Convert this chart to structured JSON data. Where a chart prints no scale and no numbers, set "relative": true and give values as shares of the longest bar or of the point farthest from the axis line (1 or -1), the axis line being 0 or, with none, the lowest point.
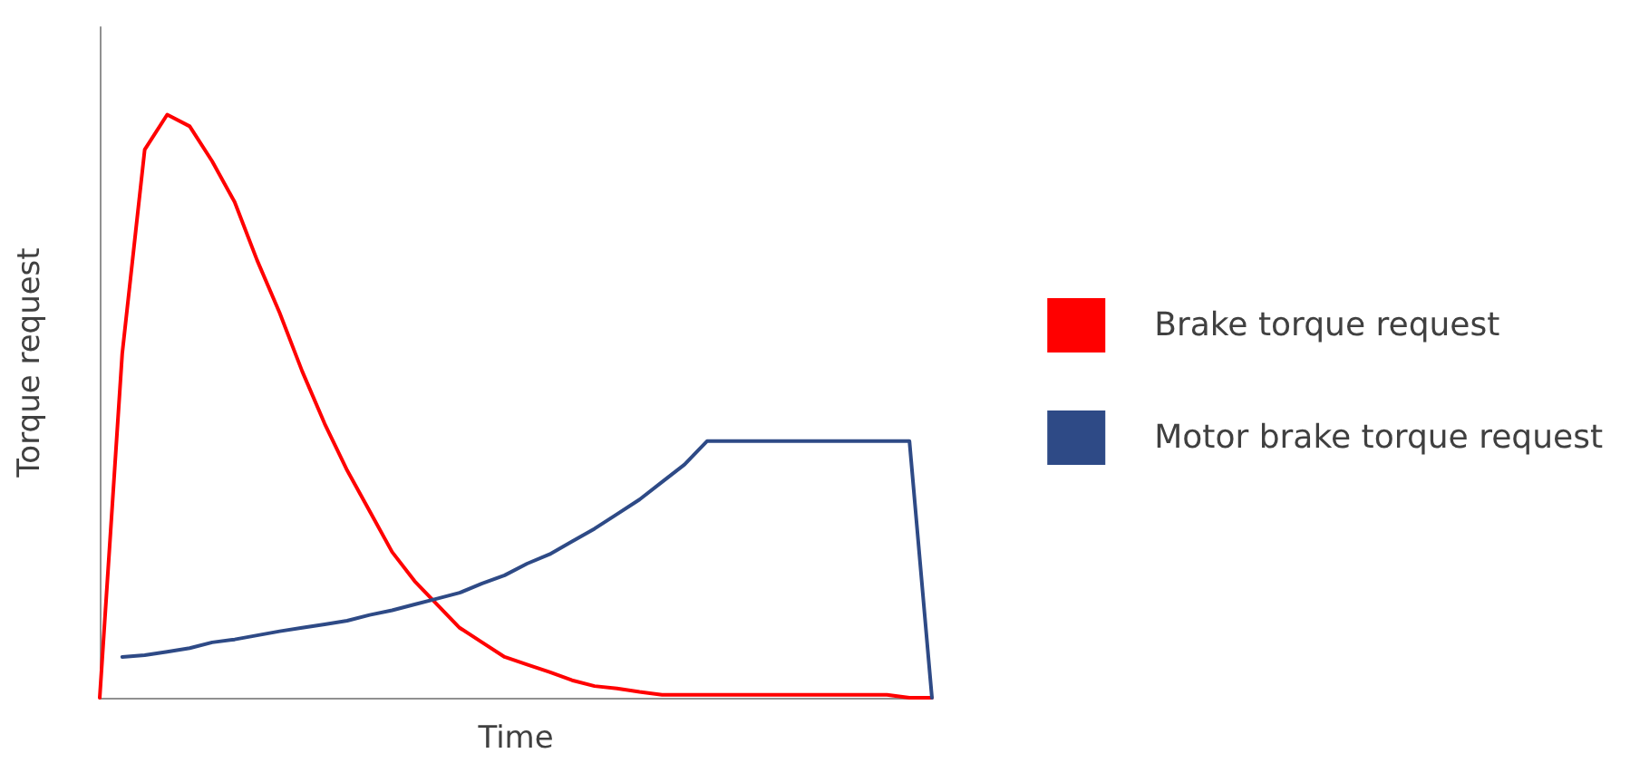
{
  "chart_data": {
    "type": "line",
    "relative": true,
    "xlabel": "Time",
    "ylabel": "Torque request",
    "grid": false,
    "legend": "right",
    "marker": "none",
    "line_style": "solid",
    "categories": [
      null,
      null,
      null,
      null,
      null,
      null,
      null,
      null,
      null,
      null,
      null,
      null,
      null,
      null,
      null,
      null,
      null,
      null,
      null,
      null,
      null,
      null,
      null,
      null,
      null,
      null,
      null,
      null,
      null,
      null,
      null,
      null,
      null,
      null,
      null,
      null,
      null,
      null
    ],
    "series": [
      {
        "name": "Brake torque request",
        "color": "#ff0000",
        "values": [
          0,
          0.59,
          0.94,
          1,
          0.98,
          0.92,
          0.85,
          0.75,
          0.66,
          0.56,
          0.47,
          0.39,
          0.32,
          0.25,
          0.2,
          0.16,
          0.12,
          0.095,
          0.07,
          0.057,
          0.044,
          0.03,
          0.02,
          0.016,
          0.01,
          0.005,
          0.005,
          0.005,
          0.005,
          0.005,
          0.005,
          0.005,
          0.005,
          0.005,
          0.005,
          0.005,
          0,
          0
        ]
      },
      {
        "name": "Motor brake torque request",
        "color": "#2e4a86",
        "values": [
          null,
          0.07,
          0.073,
          0.079,
          0.085,
          0.095,
          0.1,
          0.107,
          0.114,
          0.12,
          0.126,
          0.132,
          0.142,
          0.15,
          0.16,
          0.17,
          0.18,
          0.196,
          0.21,
          0.23,
          0.246,
          0.268,
          0.29,
          0.315,
          0.34,
          0.37,
          0.4,
          0.44,
          0.44,
          0.44,
          0.44,
          0.44,
          0.44,
          0.44,
          0.44,
          0.44,
          0.44,
          0
        ]
      }
    ]
  }
}
